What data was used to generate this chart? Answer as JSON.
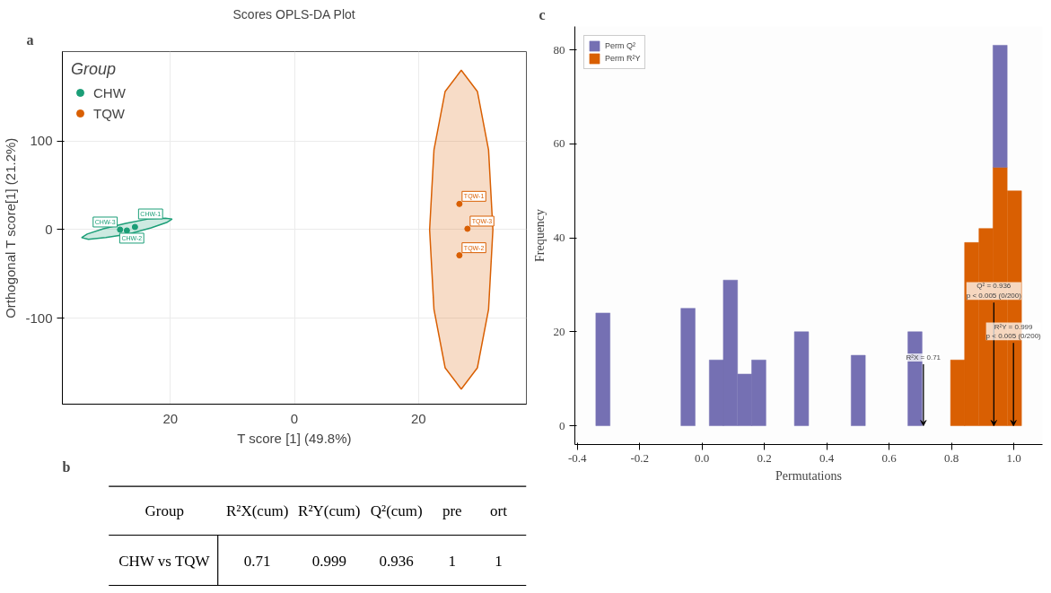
{
  "chart_data": [
    {
      "type": "scatter",
      "title": "Scores OPLS-DA Plot",
      "xlabel": "T score [1] (49.8%)",
      "ylabel": "Orthogonal T score[1] (21.2%)",
      "legend_title": "Group",
      "legend": "top left",
      "grid": true,
      "xlim": [
        -37.4,
        37.4
      ],
      "ylim": [
        -197,
        201
      ],
      "xticks": [
        {
          "value": -20,
          "label": "20"
        },
        0,
        20
      ],
      "yticks": [
        -100,
        0,
        100
      ],
      "series": [
        {
          "type": "area",
          "color": "#1b9e77",
          "x": [
            -19.7,
            -20.6,
            -23.1,
            -26.8,
            -30.4,
            -33.2,
            -34.3,
            -33.4,
            -30.8,
            -27.2,
            -23.6,
            -20.8
          ],
          "values": [
            12,
            8,
            2,
            -5,
            -9,
            -11,
            -9,
            -5,
            1,
            7,
            12,
            13
          ]
        },
        {
          "type": "area",
          "color": "#d95f02",
          "x": [
            32,
            31.3,
            29.5,
            26.9,
            24.3,
            22.5,
            21.8,
            22.5,
            24.3,
            26.9,
            29.5,
            31.3
          ],
          "values": [
            0,
            90,
            156,
            180,
            156,
            90,
            0,
            -90,
            -156,
            -180,
            -156,
            -90
          ]
        },
        {
          "name": "CHW",
          "marker": "circle",
          "color": "#1b9e77",
          "x": [
            -25.7,
            -27.0,
            -28.1
          ],
          "values": [
            3,
            -1,
            0
          ]
        },
        {
          "name": "TQW",
          "marker": "circle",
          "color": "#d95f02",
          "x": [
            26.6,
            26.6,
            27.9
          ],
          "values": [
            29,
            -29,
            1
          ]
        }
      ],
      "annotations": [
        "a",
        {
          "text": "CHW-1",
          "x": -25.7,
          "y": 3
        },
        {
          "text": "CHW-2",
          "x": -27.0,
          "y": -1
        },
        {
          "text": "CHW-3",
          "x": -28.1,
          "y": 0
        },
        {
          "text": "TQW-1",
          "x": 26.6,
          "y": 29
        },
        {
          "text": "TQW-2",
          "x": 26.6,
          "y": -29
        },
        {
          "text": "TQW-3",
          "x": 27.9,
          "y": 1
        }
      ]
    },
    {
      "type": "other",
      "categories": [
        "R²X(cum)",
        "R²Y(cum)",
        "Q²(cum)",
        "pre",
        "ort"
      ],
      "values": [
        0.71,
        0.999,
        0.936,
        1,
        1
      ],
      "data_labels": true,
      "annotations": [
        "b",
        "Group",
        "CHW vs TQW"
      ]
    },
    {
      "type": "bar",
      "stacked": true,
      "xlabel": "Permutations",
      "ylabel": "Frequency",
      "legend": "top left",
      "grid": false,
      "xlim": [
        -0.408,
        1.092
      ],
      "ylim": [
        -4,
        85
      ],
      "xticks": [
        -0.4,
        -0.2,
        {
          "value": 0,
          "label": "0.0"
        },
        0.2,
        0.4,
        0.6,
        0.8,
        {
          "value": 1,
          "label": "1.0"
        }
      ],
      "yticks": [
        0,
        20,
        40,
        60,
        80
      ],
      "series": [
        {
          "name": "Perm R²Y",
          "color": "#d95f02",
          "values": [
            null,
            null,
            null,
            null,
            null,
            null,
            null,
            null,
            null,
            14,
            39,
            42,
            55,
            50
          ]
        },
        {
          "name": "Perm Q²",
          "color": "#7570b3",
          "values": [
            24,
            25,
            14,
            31,
            11,
            14,
            20,
            15,
            20,
            null,
            null,
            null,
            26,
            null
          ]
        }
      ],
      "x": [
        -0.318,
        -0.045,
        0.046,
        0.091,
        0.137,
        0.182,
        0.319,
        0.501,
        0.683,
        0.82,
        0.865,
        0.911,
        0.956,
        1.002
      ],
      "annotations": [
        "c",
        {
          "text": "R²X = 0.71",
          "x": 0.71,
          "y": 0
        },
        {
          "text": "Q² = 0.936\np < 0.005 (0/200)",
          "x": 0.936,
          "y": 0
        },
        {
          "text": "R²Y = 0.999\np < 0.005 (0/200)",
          "x": 0.999,
          "y": 0
        }
      ]
    }
  ]
}
